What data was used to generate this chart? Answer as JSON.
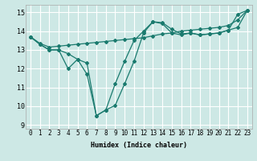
{
  "title": "",
  "xlabel": "Humidex (Indice chaleur)",
  "bg_color": "#cde8e5",
  "grid_color": "#ffffff",
  "line_color": "#1a7a6e",
  "xlim": [
    -0.5,
    23.5
  ],
  "ylim": [
    8.8,
    15.4
  ],
  "xticks": [
    0,
    1,
    2,
    3,
    4,
    5,
    6,
    7,
    8,
    9,
    10,
    11,
    12,
    13,
    14,
    15,
    16,
    17,
    18,
    19,
    20,
    21,
    22,
    23
  ],
  "yticks": [
    9,
    10,
    11,
    12,
    13,
    14,
    15
  ],
  "line1_x": [
    0,
    1,
    2,
    3,
    4,
    5,
    6,
    7,
    8,
    9,
    10,
    11,
    12,
    13,
    14,
    15,
    16,
    17,
    18,
    19,
    20,
    21,
    22,
    23
  ],
  "line1_y": [
    13.7,
    13.3,
    13.0,
    13.0,
    12.8,
    12.5,
    11.7,
    9.5,
    9.8,
    10.05,
    11.2,
    12.4,
    13.9,
    14.5,
    14.45,
    14.1,
    13.85,
    13.9,
    13.8,
    13.85,
    13.9,
    14.05,
    14.9,
    15.1
  ],
  "line2_x": [
    0,
    1,
    2,
    3,
    4,
    5,
    6,
    7,
    8,
    9,
    10,
    11,
    12,
    13,
    14,
    15,
    16,
    17,
    18,
    19,
    20,
    21,
    22,
    23
  ],
  "line2_y": [
    13.7,
    13.3,
    13.0,
    13.0,
    12.0,
    12.5,
    12.3,
    9.5,
    9.8,
    11.2,
    12.4,
    13.5,
    14.0,
    14.5,
    14.4,
    13.9,
    13.8,
    13.9,
    13.8,
    13.85,
    13.9,
    14.05,
    14.2,
    15.1
  ],
  "line3_x": [
    0,
    1,
    2,
    3,
    4,
    5,
    6,
    7,
    8,
    9,
    10,
    11,
    12,
    13,
    14,
    15,
    16,
    17,
    18,
    19,
    20,
    21,
    22,
    23
  ],
  "line3_y": [
    13.7,
    13.35,
    13.15,
    13.2,
    13.25,
    13.3,
    13.35,
    13.4,
    13.45,
    13.5,
    13.55,
    13.6,
    13.65,
    13.75,
    13.85,
    13.9,
    14.0,
    14.05,
    14.1,
    14.15,
    14.2,
    14.3,
    14.6,
    15.1
  ],
  "marker": "D",
  "markersize": 2.0,
  "linewidth": 0.9,
  "xlabel_fontsize": 6.0,
  "tick_fontsize": 5.5
}
